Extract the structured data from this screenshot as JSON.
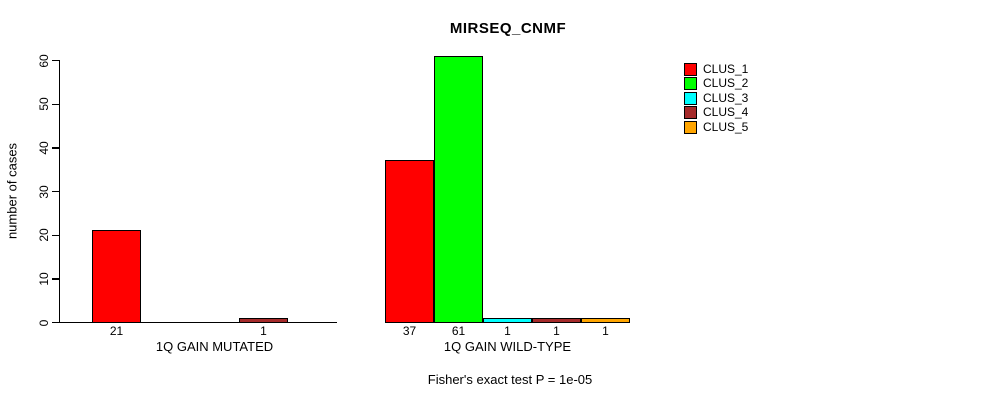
{
  "chart_data": {
    "type": "bar",
    "title": "MIRSEQ_CNMF",
    "ylabel": "number of cases",
    "ylim": [
      0,
      61
    ],
    "yticks": [
      0,
      10,
      20,
      30,
      40,
      50,
      60
    ],
    "grid": false,
    "legend_position": "right",
    "categories": [
      "1Q GAIN MUTATED",
      "1Q GAIN WILD-TYPE"
    ],
    "series": [
      {
        "name": "CLUS_1",
        "color": "#FF0000",
        "values": [
          21,
          37
        ]
      },
      {
        "name": "CLUS_2",
        "color": "#00FF00",
        "values": [
          0,
          61
        ]
      },
      {
        "name": "CLUS_3",
        "color": "#00FFFF",
        "values": [
          0,
          1
        ]
      },
      {
        "name": "CLUS_4",
        "color": "#A52A2A",
        "values": [
          1,
          1
        ]
      },
      {
        "name": "CLUS_5",
        "color": "#FFA500",
        "values": [
          0,
          1
        ]
      }
    ],
    "bar_labels": {
      "1Q GAIN MUTATED": [
        "21",
        "",
        "",
        "1",
        ""
      ],
      "1Q GAIN WILD-TYPE": [
        "37",
        "61",
        "1",
        "1",
        "1"
      ]
    },
    "annotation": "Fisher's exact test P = 1e-05"
  }
}
